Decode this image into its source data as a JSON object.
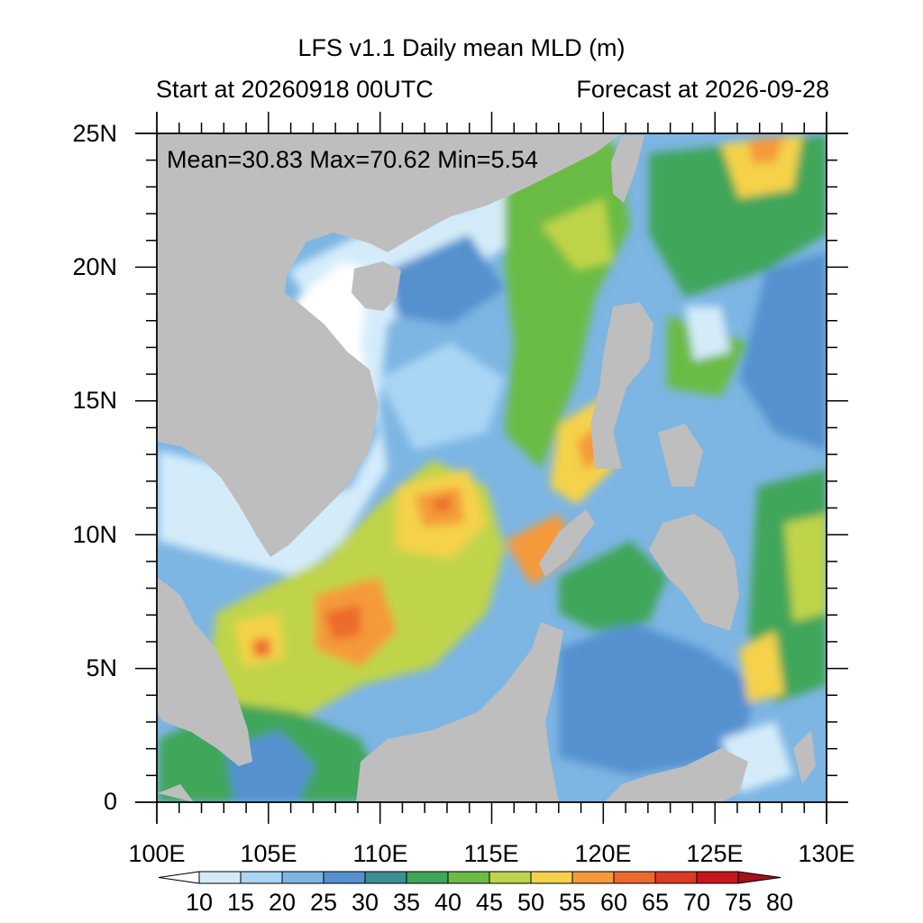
{
  "title": "LFS v1.1 Daily mean MLD (m)",
  "subtitle_left": "Start at 20260918 00UTC",
  "subtitle_right": "Forecast at 2026-09-28",
  "stats": "Mean=30.83  Max=70.62  Min=5.54",
  "lat_labels": [
    "25N",
    "20N",
    "15N",
    "10N",
    "5N",
    "0"
  ],
  "lon_labels": [
    "100E",
    "105E",
    "110E",
    "115E",
    "120E",
    "125E",
    "130E"
  ],
  "colorbar": {
    "labels": [
      "10",
      "15",
      "20",
      "25",
      "30",
      "35",
      "40",
      "45",
      "50",
      "55",
      "60",
      "65",
      "70",
      "75",
      "80"
    ],
    "colors": [
      "#ffffff",
      "#d4ecfa",
      "#a9d6f5",
      "#7db5e3",
      "#5591cf",
      "#3d8e95",
      "#3fa65a",
      "#6bbb45",
      "#bfd44a",
      "#f5d24a",
      "#f59a3a",
      "#ec6a2c",
      "#dc3b25",
      "#c8161e",
      "#a3111b"
    ]
  },
  "colors": {
    "land": "#bebebe",
    "frame": "#000000"
  }
}
